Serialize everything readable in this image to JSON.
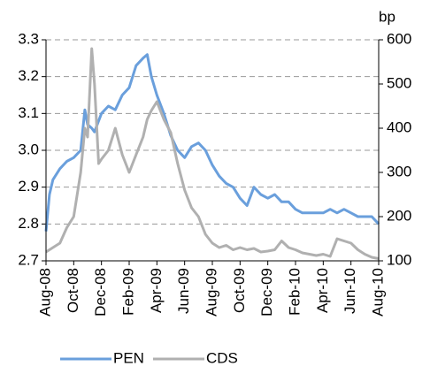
{
  "chart_data": {
    "type": "line",
    "y2_label": "bp",
    "x": [
      0,
      0.25,
      0.5,
      1,
      1.5,
      2,
      2.5,
      2.8,
      3,
      3.3,
      3.5,
      3.8,
      4,
      4.5,
      5,
      5.5,
      6,
      6.5,
      7,
      7.3,
      7.6,
      8,
      8.5,
      9,
      9.5,
      10,
      10.5,
      11,
      11.5,
      12,
      12.5,
      13,
      13.5,
      14,
      14.5,
      15,
      15.5,
      16,
      16.5,
      17,
      17.5,
      18,
      18.5,
      19,
      19.5,
      20,
      20.5,
      21,
      21.5,
      22,
      22.5,
      23,
      23.5,
      24
    ],
    "xlim": [
      0,
      24
    ],
    "xticks": [
      {
        "value": 0,
        "label": "Aug-08"
      },
      {
        "value": 2,
        "label": "Oct-08"
      },
      {
        "value": 4,
        "label": "Dec-08"
      },
      {
        "value": 6,
        "label": "Feb-09"
      },
      {
        "value": 8,
        "label": "Apr-09"
      },
      {
        "value": 10,
        "label": "Jun-09"
      },
      {
        "value": 12,
        "label": "Aug-09"
      },
      {
        "value": 14,
        "label": "Oct-09"
      },
      {
        "value": 16,
        "label": "Dec-09"
      },
      {
        "value": 18,
        "label": "Feb-10"
      },
      {
        "value": 20,
        "label": "Apr-10"
      },
      {
        "value": 22,
        "label": "Jun-10"
      },
      {
        "value": 24,
        "label": "Aug-10"
      }
    ],
    "ylim": [
      2.7,
      3.3
    ],
    "yticks": [
      2.7,
      2.8,
      2.9,
      {
        "value": 3,
        "label": "3.0"
      },
      3.1,
      3.2,
      3.3
    ],
    "y2lim": [
      100,
      600
    ],
    "y2ticks": [
      100,
      200,
      300,
      400,
      500,
      600
    ],
    "grid": true,
    "legend": "bottom",
    "series": [
      {
        "name": "PEN",
        "color": "#6a9fdc",
        "axis": "y",
        "values": [
          2.78,
          2.88,
          2.92,
          2.95,
          2.97,
          2.98,
          3.0,
          3.11,
          3.07,
          3.06,
          3.05,
          3.08,
          3.1,
          3.12,
          3.11,
          3.15,
          3.17,
          3.23,
          3.25,
          3.26,
          3.2,
          3.15,
          3.1,
          3.04,
          3.0,
          2.98,
          3.01,
          3.02,
          3.0,
          2.96,
          2.93,
          2.91,
          2.9,
          2.87,
          2.85,
          2.9,
          2.88,
          2.87,
          2.88,
          2.86,
          2.86,
          2.84,
          2.83,
          2.83,
          2.83,
          2.83,
          2.84,
          2.83,
          2.84,
          2.83,
          2.82,
          2.82,
          2.82,
          2.8
        ]
      },
      {
        "name": "CDS",
        "color": "#b0b0b0",
        "axis": "y2",
        "values": [
          120,
          125,
          130,
          140,
          175,
          200,
          300,
          400,
          380,
          580,
          500,
          320,
          330,
          350,
          400,
          340,
          300,
          340,
          380,
          420,
          440,
          460,
          420,
          390,
          320,
          260,
          220,
          200,
          160,
          140,
          130,
          135,
          125,
          130,
          125,
          128,
          120,
          122,
          125,
          145,
          130,
          125,
          118,
          115,
          112,
          115,
          110,
          150,
          145,
          140,
          125,
          115,
          108,
          105
        ]
      }
    ]
  }
}
